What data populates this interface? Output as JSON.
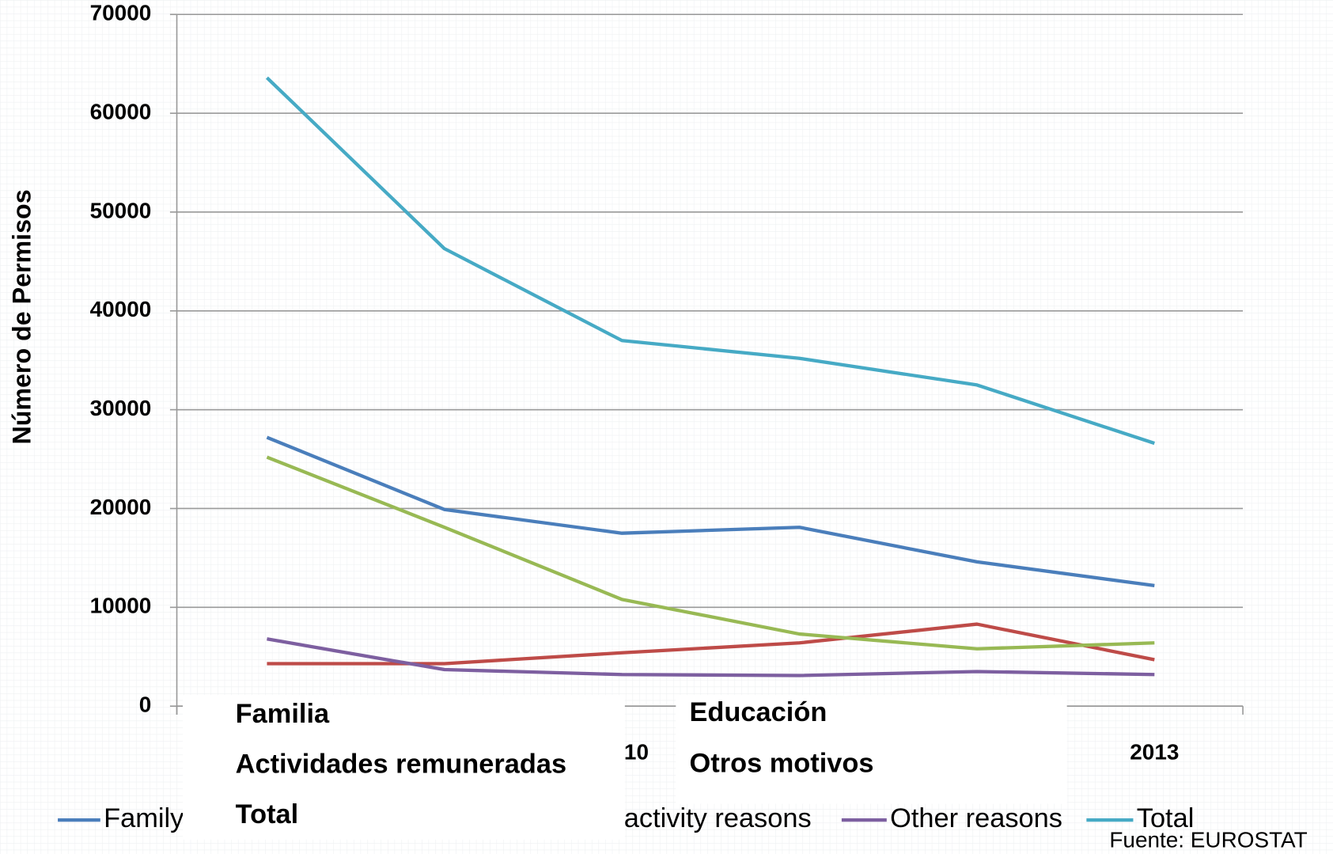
{
  "chart_data": {
    "type": "line",
    "y_label": "Número de Permisos",
    "categories": [
      null,
      null,
      "10",
      null,
      null,
      "2013"
    ],
    "series": [
      {
        "name": "Family",
        "color": "#4a7ebb",
        "values": [
          27200,
          19900,
          17500,
          18100,
          14600,
          12200
        ]
      },
      {
        "name": null,
        "color": "#be4b48",
        "values": [
          4300,
          4300,
          5400,
          6400,
          8300,
          4700
        ]
      },
      {
        "name": "activity reasons",
        "color": "#98b954",
        "values": [
          25200,
          18100,
          10800,
          7300,
          5800,
          6400
        ]
      },
      {
        "name": "Other reasons",
        "color": "#7d5fa0",
        "values": [
          6800,
          3700,
          3200,
          3100,
          3500,
          3200
        ]
      },
      {
        "name": "Total",
        "color": "#46aac5",
        "values": [
          63600,
          46300,
          37000,
          35200,
          32500,
          26600
        ]
      }
    ],
    "ylim": [
      0,
      70000
    ],
    "yticks": [
      0,
      10000,
      20000,
      30000,
      40000,
      50000,
      60000,
      70000
    ],
    "grid": true,
    "overlay_labels": [
      "Familia",
      "Educación",
      "Actividades remuneradas",
      "Otros motivos",
      "Total"
    ],
    "source": "Fuente: EUROSTAT"
  }
}
